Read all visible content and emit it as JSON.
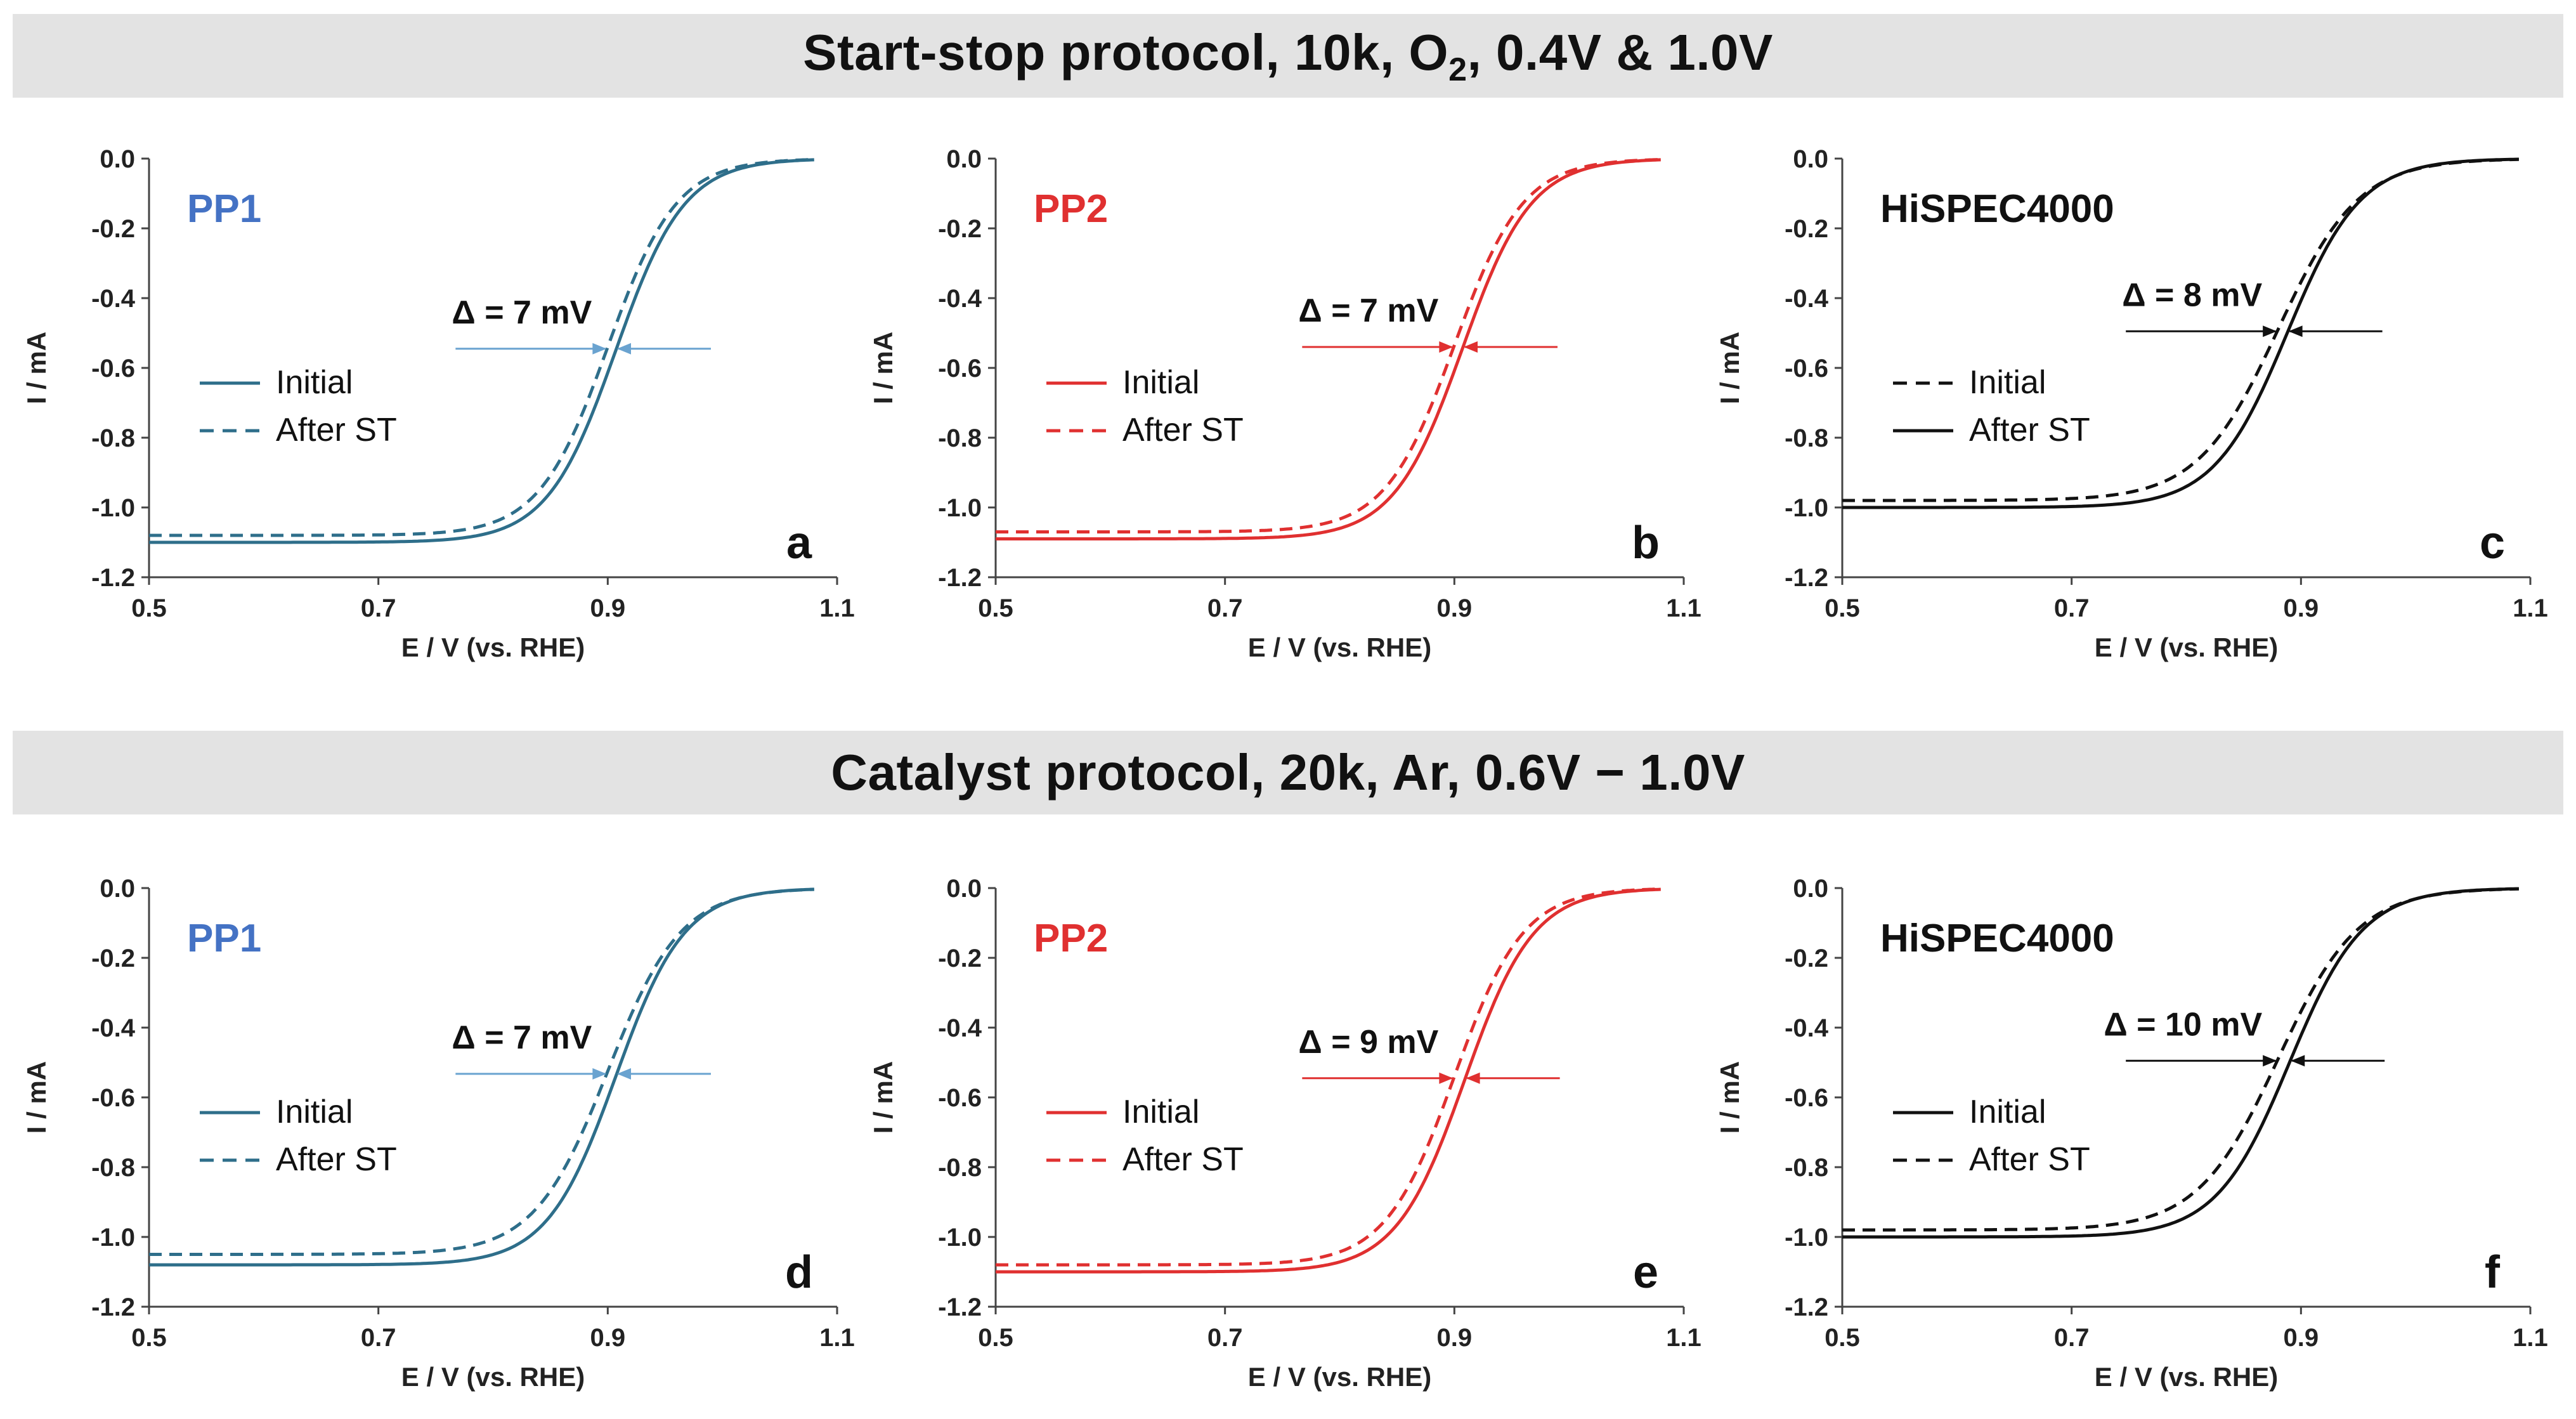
{
  "banners": {
    "top": {
      "text": "Start-stop protocol, 10k, O",
      "sub": "2",
      "tail": ", 0.4V & 1.0V"
    },
    "bottom": {
      "text": "Catalyst protocol, 20k, Ar, 0.6V − 1.0V"
    }
  },
  "chart_data": [
    {
      "type": "line",
      "panel": "a",
      "catalyst": "PP1",
      "color": "#2e6e8a",
      "label_color": "#4472c4",
      "delta": "Δ = 7 mV",
      "xlabel": "E / V (vs. RHE)",
      "ylabel": "I / mA",
      "xlim": [
        0.5,
        1.1
      ],
      "ylim": [
        -1.2,
        0.0
      ],
      "xticks": [
        "0.5",
        "0.7",
        "0.9",
        "1.1"
      ],
      "yticks": [
        "0.0",
        "-0.2",
        "-0.4",
        "-0.6",
        "-0.8",
        "-1.0",
        "-1.2"
      ],
      "x_end": 1.08,
      "series": [
        {
          "name": "Initial",
          "dash": "solid",
          "limit": -1.1,
          "halfwave": 0.907,
          "width": 0.03
        },
        {
          "name": "After ST",
          "dash": "dashed",
          "limit": -1.08,
          "halfwave": 0.9,
          "width": 0.03
        }
      ]
    },
    {
      "type": "line",
      "panel": "b",
      "catalyst": "PP2",
      "color": "#e03030",
      "label_color": "#e03030",
      "delta": "Δ = 7 mV",
      "xlabel": "E / V (vs. RHE)",
      "ylabel": "I / mA",
      "xlim": [
        0.5,
        1.1
      ],
      "ylim": [
        -1.2,
        0.0
      ],
      "xticks": [
        "0.5",
        "0.7",
        "0.9",
        "1.1"
      ],
      "yticks": [
        "0.0",
        "-0.2",
        "-0.4",
        "-0.6",
        "-0.8",
        "-1.0",
        "-1.2"
      ],
      "x_end": 1.08,
      "series": [
        {
          "name": "Initial",
          "dash": "solid",
          "limit": -1.09,
          "halfwave": 0.907,
          "width": 0.03
        },
        {
          "name": "After ST",
          "dash": "dashed",
          "limit": -1.07,
          "halfwave": 0.9,
          "width": 0.03
        }
      ]
    },
    {
      "type": "line",
      "panel": "c",
      "catalyst": "HiSPEC4000",
      "color": "#111111",
      "label_color": "#111111",
      "delta": "Δ = 8 mV",
      "xlabel": "E / V (vs. RHE)",
      "ylabel": "I / mA",
      "xlim": [
        0.5,
        1.1
      ],
      "ylim": [
        -1.2,
        0.0
      ],
      "xticks": [
        "0.5",
        "0.7",
        "0.9",
        "1.1"
      ],
      "yticks": [
        "0.0",
        "-0.2",
        "-0.4",
        "-0.6",
        "-0.8",
        "-1.0",
        "-1.2"
      ],
      "x_end": 1.09,
      "series": [
        {
          "name": "Initial",
          "dash": "dashed",
          "limit": -0.98,
          "halfwave": 0.88,
          "width": 0.035
        },
        {
          "name": "After ST",
          "dash": "solid",
          "limit": -1.0,
          "halfwave": 0.888,
          "width": 0.032
        }
      ]
    },
    {
      "type": "line",
      "panel": "d",
      "catalyst": "PP1",
      "color": "#2e6e8a",
      "label_color": "#4472c4",
      "delta": "Δ = 7 mV",
      "xlabel": "E / V (vs. RHE)",
      "ylabel": "I / mA",
      "xlim": [
        0.5,
        1.1
      ],
      "ylim": [
        -1.2,
        0.0
      ],
      "xticks": [
        "0.5",
        "0.7",
        "0.9",
        "1.1"
      ],
      "yticks": [
        "0.0",
        "-0.2",
        "-0.4",
        "-0.6",
        "-0.8",
        "-1.0",
        "-1.2"
      ],
      "x_end": 1.08,
      "series": [
        {
          "name": "Initial",
          "dash": "solid",
          "limit": -1.08,
          "halfwave": 0.907,
          "width": 0.03
        },
        {
          "name": "After ST",
          "dash": "dashed",
          "limit": -1.05,
          "halfwave": 0.9,
          "width": 0.032
        }
      ]
    },
    {
      "type": "line",
      "panel": "e",
      "catalyst": "PP2",
      "color": "#e03030",
      "label_color": "#e03030",
      "delta": "Δ = 9 mV",
      "xlabel": "E / V (vs. RHE)",
      "ylabel": "I / mA",
      "xlim": [
        0.5,
        1.1
      ],
      "ylim": [
        -1.2,
        0.0
      ],
      "xticks": [
        "0.5",
        "0.7",
        "0.9",
        "1.1"
      ],
      "yticks": [
        "0.0",
        "-0.2",
        "-0.4",
        "-0.6",
        "-0.8",
        "-1.0",
        "-1.2"
      ],
      "x_end": 1.08,
      "series": [
        {
          "name": "Initial",
          "dash": "solid",
          "limit": -1.1,
          "halfwave": 0.909,
          "width": 0.03
        },
        {
          "name": "After ST",
          "dash": "dashed",
          "limit": -1.08,
          "halfwave": 0.9,
          "width": 0.03
        }
      ]
    },
    {
      "type": "line",
      "panel": "f",
      "catalyst": "HiSPEC4000",
      "color": "#111111",
      "label_color": "#111111",
      "delta": "Δ = 10 mV",
      "xlabel": "E / V (vs. RHE)",
      "ylabel": "I / mA",
      "xlim": [
        0.5,
        1.1
      ],
      "ylim": [
        -1.2,
        0.0
      ],
      "xticks": [
        "0.5",
        "0.7",
        "0.9",
        "1.1"
      ],
      "yticks": [
        "0.0",
        "-0.2",
        "-0.4",
        "-0.6",
        "-0.8",
        "-1.0",
        "-1.2"
      ],
      "x_end": 1.09,
      "series": [
        {
          "name": "Initial",
          "dash": "solid",
          "limit": -1.0,
          "halfwave": 0.89,
          "width": 0.032
        },
        {
          "name": "After ST",
          "dash": "dashed",
          "limit": -0.98,
          "halfwave": 0.88,
          "width": 0.035
        }
      ]
    }
  ]
}
